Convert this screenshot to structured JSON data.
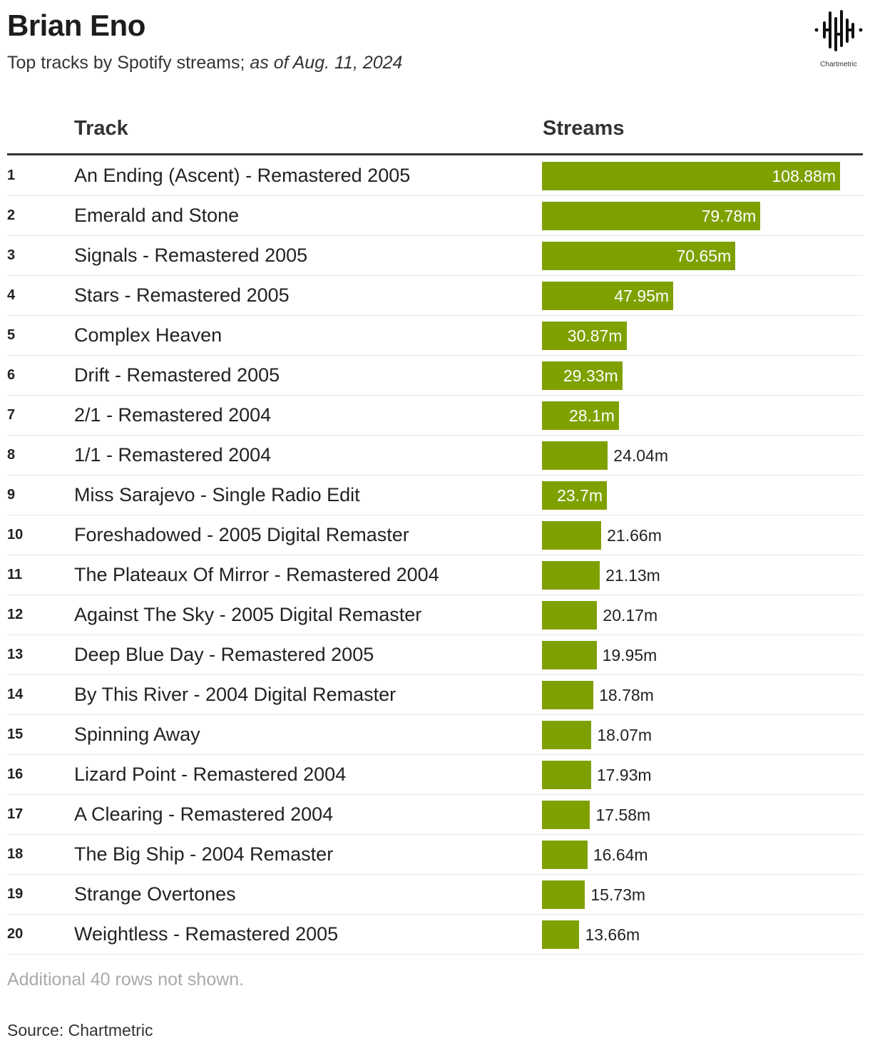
{
  "title": "Brian Eno",
  "subtitle_main": "Top tracks by Spotify streams; ",
  "subtitle_italic": "as of Aug. 11, 2024",
  "logo_text": "Chartmetric",
  "note": "Additional 40 rows not shown.",
  "source": "Source: Chartmetric",
  "colors": {
    "bar": "#7fa100"
  },
  "chart_data": {
    "type": "table",
    "columns": [
      "Track",
      "Streams"
    ],
    "unit": "m",
    "ranks": [
      "1",
      "2",
      "3",
      "4",
      "5",
      "6",
      "7",
      "8",
      "9",
      "10",
      "11",
      "12",
      "13",
      "14",
      "15",
      "16",
      "17",
      "18",
      "19",
      "20"
    ],
    "tracks": [
      "An Ending (Ascent) - Remastered 2005",
      "Emerald and Stone",
      "Signals - Remastered 2005",
      "Stars - Remastered 2005",
      "Complex Heaven",
      "Drift - Remastered 2005",
      "2/1 - Remastered 2004",
      "1/1 - Remastered 2004",
      "Miss Sarajevo - Single Radio Edit",
      "Foreshadowed - 2005 Digital Remaster",
      "The Plateaux Of Mirror - Remastered 2004",
      "Against The Sky - 2005 Digital Remaster",
      "Deep Blue Day - Remastered 2005",
      "By This River - 2004 Digital Remaster",
      "Spinning Away",
      "Lizard Point - Remastered 2004",
      "A Clearing - Remastered 2004",
      "The Big Ship - 2004 Remaster",
      "Strange Overtones",
      "Weightless - Remastered 2005"
    ],
    "values": [
      108.88,
      79.78,
      70.65,
      47.95,
      30.87,
      29.33,
      28.1,
      24.04,
      23.7,
      21.66,
      21.13,
      20.17,
      19.95,
      18.78,
      18.07,
      17.93,
      17.58,
      16.64,
      15.73,
      13.66
    ],
    "labels": [
      "108.88m",
      "79.78m",
      "70.65m",
      "47.95m",
      "30.87m",
      "29.33m",
      "28.1m",
      "24.04m",
      "23.7m",
      "21.66m",
      "21.13m",
      "20.17m",
      "19.95m",
      "18.78m",
      "18.07m",
      "17.93m",
      "17.58m",
      "16.64m",
      "15.73m",
      "13.66m"
    ],
    "label_inside": [
      true,
      true,
      true,
      true,
      true,
      true,
      true,
      false,
      true,
      false,
      false,
      false,
      false,
      false,
      false,
      false,
      false,
      false,
      false,
      false
    ]
  }
}
